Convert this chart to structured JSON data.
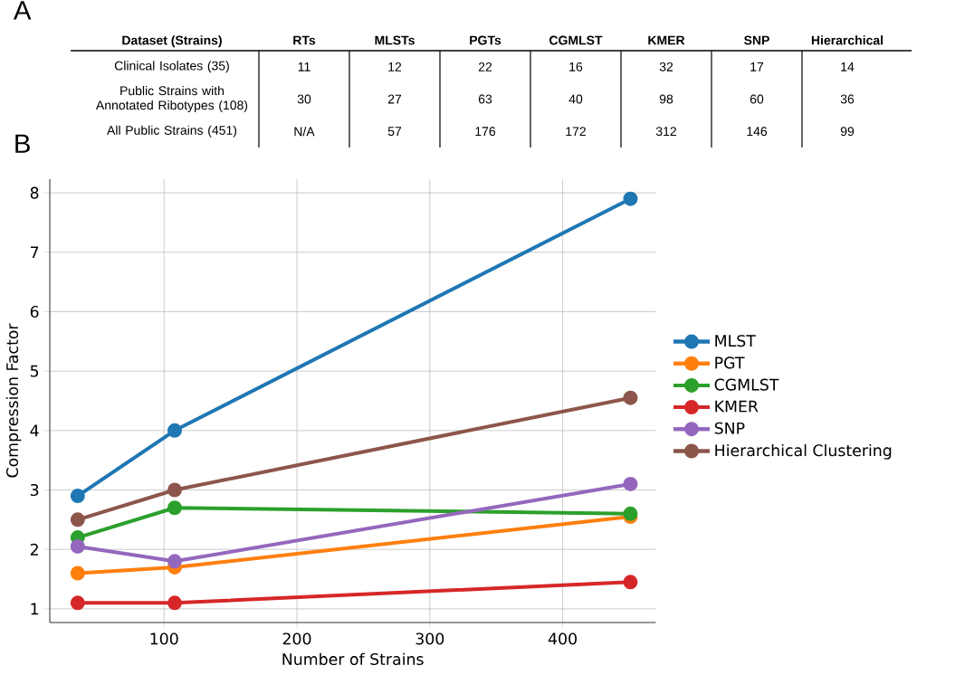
{
  "chart_data": [
    {
      "type": "other",
      "title": "A",
      "ylabel": "Dataset (Strains)",
      "categories": [
        "RTs",
        "MLSTs",
        "PGTs",
        "CGMLST",
        "KMER",
        "SNP",
        "Hierarchical"
      ],
      "annotations": [
        "Clinical Isolates (35)",
        "11",
        "12",
        "22",
        "16",
        "32",
        "17",
        "14",
        "Public Strains with Annotated Ribotypes (108)",
        "30",
        "27",
        "63",
        "40",
        "98",
        "60",
        "36",
        "All Public Strains (451)",
        "N/A",
        "57",
        "176",
        "172",
        "312",
        "146",
        "99"
      ]
    },
    {
      "type": "line",
      "title": "B",
      "xlabel": "Number of Strains",
      "ylabel": "Compression Factor",
      "x": [
        35,
        108,
        451
      ],
      "series": [
        {
          "name": "MLST",
          "color": "#1f77b4",
          "values": [
            2.9,
            4.0,
            7.9
          ]
        },
        {
          "name": "PGT",
          "color": "#ff7f0e",
          "values": [
            1.6,
            1.7,
            2.55
          ]
        },
        {
          "name": "CGMLST",
          "color": "#2ca02c",
          "values": [
            2.2,
            2.7,
            2.6
          ]
        },
        {
          "name": "KMER",
          "color": "#d62728",
          "values": [
            1.1,
            1.1,
            1.45
          ]
        },
        {
          "name": "SNP",
          "color": "#9467bd",
          "values": [
            2.05,
            1.8,
            3.1
          ]
        },
        {
          "name": "Hierarchical Clustering",
          "color": "#8c564b",
          "values": [
            2.5,
            3.0,
            4.55
          ]
        }
      ],
      "xlim": [
        14,
        470
      ],
      "ylim": [
        0.77,
        8.23
      ],
      "xticks": [
        100,
        200,
        300,
        400
      ],
      "yticks": [
        1,
        2,
        3,
        4,
        5,
        6,
        7,
        8
      ],
      "grid": true,
      "legend": "right",
      "marker": "circle",
      "line_style": "solid"
    }
  ]
}
